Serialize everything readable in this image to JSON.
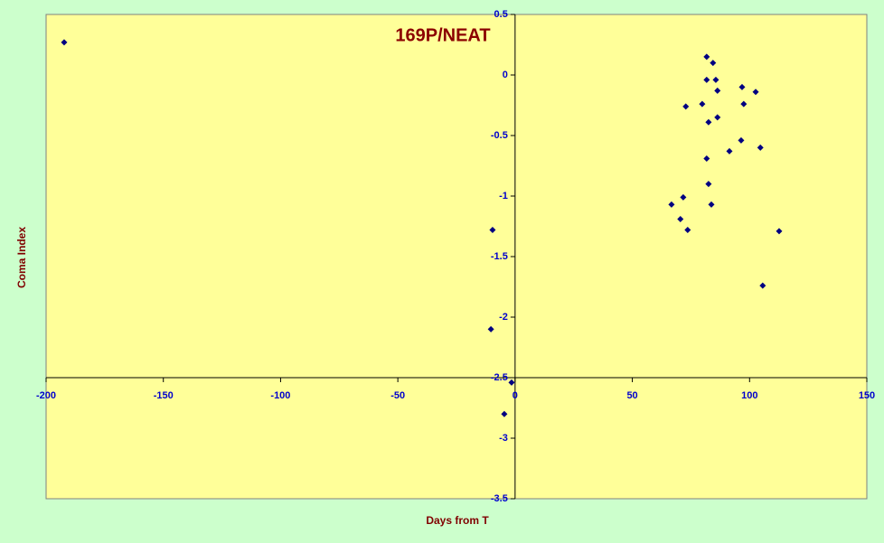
{
  "chart_data": {
    "type": "scatter",
    "title": "169P/NEAT",
    "x_label": "Days from T",
    "y_label": "Coma Index",
    "series": [
      {
        "name": "169P/NEAT",
        "color": "#000080",
        "x": [
          -192.3,
          -9.6,
          -10.3,
          -1.5,
          -4.6,
          81.7,
          84.4,
          81.7,
          85.6,
          86.3,
          96.8,
          102.6,
          79.8,
          97.5,
          72.8,
          86.3,
          82.5,
          96.4,
          91.4,
          104.6,
          81.7,
          82.5,
          71.7,
          66.7,
          83.7,
          70.5,
          73.6,
          112.6,
          105.6
        ],
        "values": [
          0.27,
          -1.28,
          -2.1,
          -2.54,
          -2.8,
          0.15,
          0.1,
          -0.04,
          -0.04,
          -0.13,
          -0.1,
          -0.14,
          -0.24,
          -0.24,
          -0.26,
          -0.35,
          -0.39,
          -0.54,
          -0.63,
          -0.6,
          -0.69,
          -0.9,
          -1.01,
          -1.07,
          -1.07,
          -1.19,
          -1.28,
          -1.29,
          -1.74
        ]
      }
    ],
    "xlim": [
      -200,
      150
    ],
    "xticks": [
      -200,
      -150,
      -100,
      -50,
      0,
      50,
      100,
      150
    ],
    "ylim": [
      -3.5,
      0.5
    ],
    "yticks": [
      0.5,
      0,
      -0.5,
      -1,
      -1.5,
      -2,
      -2.5,
      -3,
      -3.5
    ],
    "x_axis_crosses_y": -2.5,
    "y_axis_crosses_x": 0,
    "background": "#ffff99"
  }
}
